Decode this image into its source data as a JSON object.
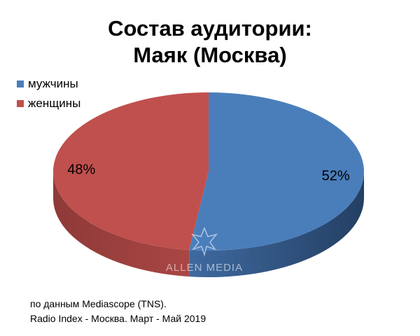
{
  "title_line1": "Состав аудитории:",
  "title_line2": "Маяк (Москва)",
  "chart_data": {
    "type": "pie",
    "title": "Состав аудитории: Маяк (Москва)",
    "slices": [
      {
        "label": "мужчины",
        "value": 52,
        "display": "52%",
        "color": "#4a7ebb"
      },
      {
        "label": "женщины",
        "value": 48,
        "display": "48%",
        "color": "#c0504d"
      }
    ],
    "legend_position": "top-left",
    "three_d": true
  },
  "watermark": {
    "text": "ALLEN MEDIA"
  },
  "source": {
    "line1": "по данным Mediascope (TNS).",
    "line2": "Radio Index - Москва. Март - Май 2019"
  }
}
